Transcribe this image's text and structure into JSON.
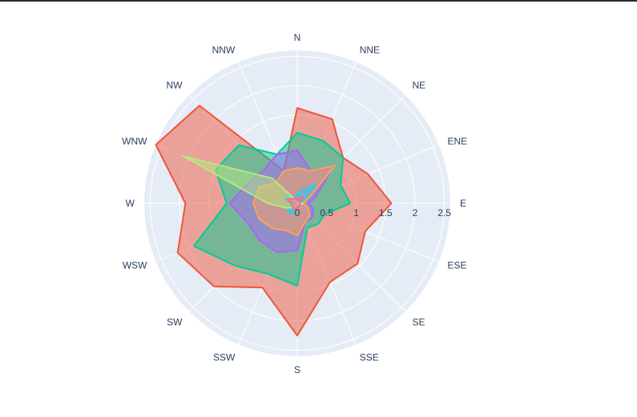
{
  "chart_data": {
    "type": "area",
    "polar": true,
    "directions": [
      "N",
      "NNE",
      "NE",
      "ENE",
      "E",
      "ESE",
      "SE",
      "SSE",
      "S",
      "SSW",
      "SW",
      "WSW",
      "W",
      "WNW",
      "NW",
      "NNW"
    ],
    "radial_ticks": [
      "0",
      "0.5",
      "1",
      "1.5",
      "2",
      "2.5"
    ],
    "radial_range": [
      0,
      2.6
    ],
    "background_color": "#e5ecf6",
    "grid_color": "#ffffff",
    "text_color": "#2a3f5f",
    "series": [
      {
        "color": "#ef553b",
        "values": [
          1.62,
          1.55,
          1.1,
          1.3,
          1.6,
          1.25,
          1.45,
          1.45,
          2.25,
          1.55,
          2.0,
          2.2,
          1.9,
          2.6,
          2.35,
          0.6
        ]
      },
      {
        "color": "#00cc96",
        "values": [
          1.2,
          1.15,
          1.1,
          0.8,
          0.9,
          0.5,
          0.5,
          0.45,
          1.4,
          1.3,
          1.5,
          1.9,
          1.2,
          1.5,
          1.4,
          0.9
        ]
      },
      {
        "color": "#ab63fa",
        "values": [
          0.9,
          0.6,
          0.85,
          0.35,
          0.2,
          0.3,
          0.35,
          0.35,
          0.8,
          0.9,
          0.9,
          0.9,
          1.15,
          0.9,
          0.8,
          0.9
        ]
      },
      {
        "color": "#ffa15a",
        "values": [
          0.6,
          0.6,
          0.9,
          0.2,
          0.1,
          0.2,
          0.3,
          0.35,
          0.55,
          0.5,
          0.6,
          0.7,
          0.75,
          0.7,
          0.5,
          0.6
        ]
      },
      {
        "color": "#19d3f3",
        "values": [
          0.15,
          0.25,
          0.45,
          0.1,
          0.05,
          0.05,
          0.05,
          0.05,
          0.05,
          0.2,
          0.2,
          0.2,
          0.1,
          0.25,
          0.2,
          0.1
        ]
      },
      {
        "color": "#b6e880",
        "values": [
          0.02,
          0.02,
          0.02,
          0.02,
          0.1,
          0.05,
          0.02,
          0.02,
          0.02,
          0.05,
          0.1,
          0.2,
          0.5,
          2.1,
          0.6,
          0.05
        ]
      },
      {
        "color": "#ff6692",
        "values": [
          0.05,
          0.1,
          0.15,
          0.05,
          0.05,
          0.05,
          0.05,
          0.05,
          0.1,
          0.1,
          0.1,
          0.1,
          0.1,
          0.2,
          0.1,
          0.1
        ]
      }
    ]
  }
}
